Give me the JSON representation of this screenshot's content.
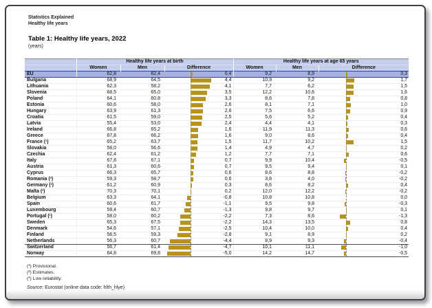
{
  "page": {
    "site_line1": "Statistics Explained",
    "site_line2": "Healthy life years",
    "title": "Table 1: Healthy life years, 2022",
    "unit": "(years)"
  },
  "table": {
    "group_headers": [
      "Healthy life years at birth",
      "Healthy life years at age 65 years"
    ],
    "sub_headers": [
      "Women",
      "Men",
      "Difference",
      "Women",
      "Men",
      "Difference"
    ],
    "bar_color": "#b5931c",
    "eu_row_color": "#a6b2e2",
    "header_color": "#c5cdec",
    "rows": [
      {
        "name": "EU",
        "footnote": "",
        "values": [
          "62,8",
          "62,4",
          "0,4",
          "9,2",
          "8,9",
          "0,3"
        ],
        "highlight": true
      },
      {
        "name": "Bulgaria",
        "footnote": "",
        "values": [
          "68,9",
          "64,5",
          "4,4",
          "10,9",
          "9,2",
          "1,7"
        ]
      },
      {
        "name": "Lithuania",
        "footnote": "",
        "values": [
          "62,3",
          "58,2",
          "4,1",
          "7,7",
          "6,2",
          "1,5"
        ]
      },
      {
        "name": "Slovenia",
        "footnote": "",
        "values": [
          "68,5",
          "65,0",
          "3,5",
          "12,2",
          "10,6",
          "1,6"
        ]
      },
      {
        "name": "Poland",
        "footnote": "",
        "values": [
          "64,1",
          "60,8",
          "3,3",
          "8,6",
          "7,8",
          "0,8"
        ]
      },
      {
        "name": "Estonia",
        "footnote": "",
        "values": [
          "60,6",
          "58,0",
          "2,6",
          "8,1",
          "7,1",
          "1,0"
        ]
      },
      {
        "name": "Hungary",
        "footnote": "",
        "values": [
          "63,9",
          "61,3",
          "2,6",
          "7,5",
          "6,6",
          "0,9"
        ]
      },
      {
        "name": "Croatia",
        "footnote": "",
        "values": [
          "61,5",
          "59,0",
          "2,5",
          "5,6",
          "5,2",
          "0,4"
        ]
      },
      {
        "name": "Latvia",
        "footnote": "",
        "values": [
          "55,4",
          "53,0",
          "2,4",
          "4,4",
          "4,1",
          "0,3"
        ]
      },
      {
        "name": "Ireland",
        "footnote": "",
        "values": [
          "66,8",
          "65,2",
          "1,6",
          "11,9",
          "11,3",
          "0,6"
        ]
      },
      {
        "name": "Greece",
        "footnote": "",
        "values": [
          "67,8",
          "66,2",
          "1,6",
          "9,0",
          "8,6",
          "0,4"
        ]
      },
      {
        "name": "France",
        "footnote": "¹",
        "values": [
          "65,2",
          "63,7",
          "1,5",
          "11,7",
          "10,2",
          "1,5"
        ]
      },
      {
        "name": "Slovakia",
        "footnote": "",
        "values": [
          "58,0",
          "56,6",
          "1,4",
          "4,9",
          "4,7",
          "0,2"
        ]
      },
      {
        "name": "Czechia",
        "footnote": "",
        "values": [
          "62,4",
          "61,2",
          "1,2",
          "7,7",
          "7,1",
          "0,6"
        ]
      },
      {
        "name": "Italy",
        "footnote": "",
        "values": [
          "67,8",
          "67,1",
          "0,7",
          "9,9",
          "10,4",
          "-0,5"
        ]
      },
      {
        "name": "Austria",
        "footnote": "",
        "values": [
          "61,3",
          "60,6",
          "0,7",
          "9,5",
          "9,4",
          "0,1"
        ]
      },
      {
        "name": "Cyprus",
        "footnote": "",
        "values": [
          "66,3",
          "65,7",
          "0,6",
          "8,6",
          "8,8",
          "-0,2"
        ]
      },
      {
        "name": "Romania",
        "footnote": "²",
        "values": [
          "59,3",
          "58,7",
          "0,6",
          "3,8",
          "4,0",
          "-0,2"
        ]
      },
      {
        "name": "Germany",
        "footnote": "²",
        "values": [
          "61,2",
          "60,9",
          "0,3",
          "8,6",
          "8,2",
          "0,4"
        ]
      },
      {
        "name": "Malta",
        "footnote": "³",
        "values": [
          "70,3",
          "70,1",
          "0,2",
          "12,0",
          "12,2",
          "-0,2"
        ]
      },
      {
        "name": "Belgium",
        "footnote": "",
        "values": [
          "63,3",
          "64,1",
          "-0,8",
          "10,8",
          "10,8",
          "0,0"
        ]
      },
      {
        "name": "Spain",
        "footnote": "",
        "values": [
          "60,6",
          "61,7",
          "-1,1",
          "9,5",
          "9,8",
          "-0,3"
        ]
      },
      {
        "name": "Luxembourg",
        "footnote": "",
        "values": [
          "59,4",
          "60,7",
          "-1,3",
          "9,8",
          "9,7",
          "0,1"
        ]
      },
      {
        "name": "Portugal",
        "footnote": "¹",
        "values": [
          "58,0",
          "60,2",
          "-2,2",
          "7,3",
          "8,6",
          "-1,3"
        ]
      },
      {
        "name": "Sweden",
        "footnote": "",
        "values": [
          "65,3",
          "67,5",
          "-2,2",
          "14,3",
          "13,5",
          "0,8"
        ]
      },
      {
        "name": "Denmark",
        "footnote": "",
        "values": [
          "54,6",
          "57,1",
          "-2,5",
          "10,4",
          "10,0",
          "0,4"
        ]
      },
      {
        "name": "Finland",
        "footnote": "",
        "values": [
          "56,5",
          "59,3",
          "-2,8",
          "9,1",
          "8,9",
          "0,2"
        ]
      },
      {
        "name": "Netherlands",
        "footnote": "",
        "values": [
          "56,3",
          "60,7",
          "-4,4",
          "8,9",
          "9,3",
          "-0,4"
        ],
        "rule_below": true
      },
      {
        "name": "Switzerland",
        "footnote": "",
        "values": [
          "56,7",
          "61,4",
          "-4,7",
          "10,1",
          "11,1",
          "-1,0"
        ]
      },
      {
        "name": "Norway",
        "footnote": "",
        "values": [
          "64,8",
          "69,8",
          "-5,0",
          "14,2",
          "14,7",
          "-0,5"
        ],
        "rule_below": true
      }
    ]
  },
  "footnotes": [
    "(¹) Provisional.",
    "(²) Estimates.",
    "(³) Low reliability."
  ],
  "source": {
    "label": "Source:",
    "text": " Eurostat (online data code: hlth_hlye)"
  }
}
